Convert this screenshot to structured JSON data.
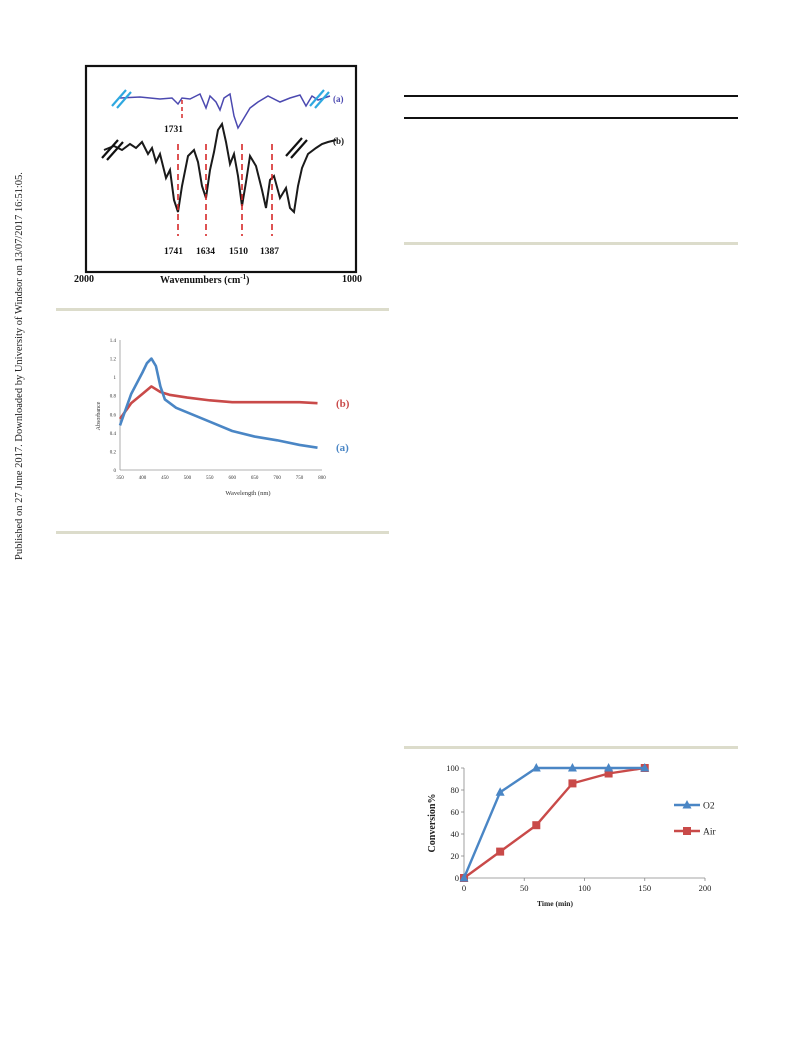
{
  "sidebar": {
    "text": "Published on 27 June 2017. Downloaded by University of Windsor on 13/07/2017 16:51:05."
  },
  "figures": {
    "ftir": {
      "series_labels": [
        "(a)",
        "(b)"
      ],
      "peak_label_a": "1731",
      "peak_labels_b": [
        "1741",
        "1634",
        "1510",
        "1387"
      ],
      "x_left": "2000",
      "x_right": "1000",
      "xlabel": "Wavenumbers (cm",
      "xlabel_sup": "-1",
      "xlabel_close": ")",
      "colors": {
        "a": "#4b49b0",
        "b": "#1a1a1a",
        "peak": "#d62828"
      }
    },
    "uvvis": {
      "series_labels": [
        "(a)",
        "(b)"
      ],
      "xlabel": "Wavelength (nm)",
      "ylabel": "Absorbance",
      "colors": {
        "a": "#4a86c5",
        "b": "#c94a49"
      }
    }
  },
  "chart_data": [
    {
      "type": "line",
      "title": "",
      "xlabel": "Wavenumbers (cm-1)",
      "ylabel": "",
      "xlim": [
        2000,
        1000
      ],
      "x_ticks": [
        "2000",
        "1000"
      ],
      "series": [
        {
          "name": "(a)",
          "peaks": [
            1731
          ]
        },
        {
          "name": "(b)",
          "peaks": [
            1741,
            1634,
            1510,
            1387
          ]
        }
      ],
      "grid": false,
      "legend": "right"
    },
    {
      "type": "line",
      "title": "",
      "xlabel": "Wavelength (nm)",
      "ylabel": "Absorbance",
      "xlim": [
        350,
        800
      ],
      "ylim": [
        0,
        1.4
      ],
      "x_ticks": [
        "350",
        "400",
        "450",
        "500",
        "550",
        "600",
        "650",
        "700",
        "750",
        "800"
      ],
      "y_ticks": [
        "0",
        "0.2",
        "0.4",
        "0.6",
        "0.8",
        "1",
        "1.2",
        "1.4"
      ],
      "series": [
        {
          "name": "(a)",
          "color": "#4a86c5",
          "x": [
            350,
            375,
            400,
            410,
            420,
            430,
            440,
            450,
            475,
            500,
            550,
            600,
            650,
            700,
            750,
            790
          ],
          "values": [
            0.48,
            0.82,
            1.05,
            1.15,
            1.2,
            1.12,
            0.9,
            0.76,
            0.67,
            0.62,
            0.52,
            0.42,
            0.36,
            0.32,
            0.27,
            0.24
          ]
        },
        {
          "name": "(b)",
          "color": "#c94a49",
          "x": [
            350,
            375,
            400,
            420,
            440,
            460,
            500,
            550,
            600,
            650,
            700,
            750,
            790
          ],
          "values": [
            0.55,
            0.72,
            0.82,
            0.9,
            0.84,
            0.81,
            0.78,
            0.75,
            0.73,
            0.73,
            0.73,
            0.73,
            0.72
          ]
        }
      ],
      "grid": false,
      "legend": "right"
    },
    {
      "type": "line",
      "title": "",
      "xlabel": "Time (min)",
      "ylabel": "Conversion%",
      "xlim": [
        0,
        200
      ],
      "ylim": [
        0,
        100
      ],
      "x_ticks": [
        "0",
        "50",
        "100",
        "150",
        "200"
      ],
      "y_ticks": [
        "0",
        "20",
        "40",
        "60",
        "80",
        "100"
      ],
      "series": [
        {
          "name": "O2",
          "color": "#4a86c5",
          "marker": "triangle",
          "x": [
            0,
            30,
            60,
            90,
            120,
            150
          ],
          "values": [
            0,
            78,
            100,
            100,
            100,
            100
          ]
        },
        {
          "name": "Air",
          "color": "#c94a49",
          "marker": "square",
          "x": [
            0,
            30,
            60,
            90,
            120,
            150
          ],
          "values": [
            0,
            24,
            48,
            86,
            95,
            100
          ]
        }
      ],
      "grid": false,
      "legend": "right"
    }
  ]
}
